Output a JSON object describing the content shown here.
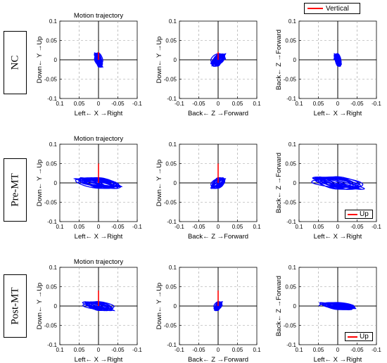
{
  "rows": [
    "NC",
    "Pre-MT",
    "Post-MT"
  ],
  "legends": [
    {
      "label": "Vertical"
    },
    {
      "label": "Up"
    },
    {
      "label": "Up"
    }
  ],
  "colors": {
    "trajectory": "#0000ff",
    "vertical": "#ff0000",
    "grid": "#999999"
  },
  "chart_data": [
    {
      "type": "line",
      "title": "Motion trajectory",
      "xlabel": "Left← X →Right",
      "ylabel": "Down← Y →Up",
      "xlim": [
        0.1,
        -0.1
      ],
      "ylim": [
        -0.1,
        0.1
      ],
      "xticks": [
        "0.1",
        "0.05",
        "0",
        "-0.05",
        "-0.1"
      ],
      "yticks": [
        "0.1",
        "0.05",
        "0",
        "-0.05",
        "-0.1"
      ],
      "grid": true,
      "vertical_line": {
        "from": 0,
        "to": 0.02
      },
      "series": [
        {
          "center": [
            0.0,
            0.0
          ],
          "rx": 0.008,
          "ry": 0.016,
          "loops": 12
        }
      ]
    },
    {
      "type": "line",
      "title": "",
      "xlabel": "Back← Z →Forward",
      "ylabel": "Down← Y →Up",
      "xlim": [
        -0.1,
        0.1
      ],
      "ylim": [
        -0.1,
        0.1
      ],
      "xticks": [
        "-0.1",
        "-0.05",
        "0",
        "0.05",
        "0.1"
      ],
      "yticks": [
        "0.1",
        "0.05",
        "0",
        "-0.05",
        "-0.1"
      ],
      "grid": true,
      "vertical_line": {
        "from": 0,
        "to": 0.02
      },
      "series": [
        {
          "center": [
            0.0,
            0.0
          ],
          "rx": 0.014,
          "ry": 0.014,
          "loops": 12
        }
      ]
    },
    {
      "type": "line",
      "title": "",
      "xlabel": "Left← X →Right",
      "ylabel": "Back← Z →Forward",
      "xlim": [
        0.1,
        -0.1
      ],
      "ylim": [
        -0.1,
        0.1
      ],
      "xticks": [
        "0.1",
        "0.05",
        "0",
        "-0.05",
        "-0.1"
      ],
      "yticks": [
        "0.1",
        "0.05",
        "0",
        "-0.05",
        "-0.1"
      ],
      "grid": true,
      "vertical_line": null,
      "series": [
        {
          "center": [
            0.0,
            0.0
          ],
          "rx": 0.007,
          "ry": 0.014,
          "loops": 12
        }
      ]
    },
    {
      "type": "line",
      "title": "Motion trajectory",
      "xlabel": "Left← X →Right",
      "ylabel": "Down← Y →Up",
      "xlim": [
        0.1,
        -0.1
      ],
      "ylim": [
        -0.1,
        0.1
      ],
      "xticks": [
        "0.1",
        "0.05",
        "0",
        "-0.05",
        "-0.1"
      ],
      "yticks": [
        "0.1",
        "0.05",
        "0",
        "-0.05",
        "-0.1"
      ],
      "grid": true,
      "vertical_line": {
        "from": 0,
        "to": 0.05
      },
      "series": [
        {
          "center": [
            0.0,
            0.0
          ],
          "rx": 0.045,
          "ry": 0.012,
          "loops": 12
        }
      ]
    },
    {
      "type": "line",
      "title": "",
      "xlabel": "Back← Z →Forward",
      "ylabel": "Down← Y →Up",
      "xlim": [
        -0.1,
        0.1
      ],
      "ylim": [
        -0.1,
        0.1
      ],
      "xticks": [
        "-0.1",
        "-0.05",
        "0",
        "0.05",
        "0.1"
      ],
      "yticks": [
        "0.1",
        "0.05",
        "0",
        "-0.05",
        "-0.1"
      ],
      "grid": true,
      "vertical_line": {
        "from": 0,
        "to": 0.05
      },
      "series": [
        {
          "center": [
            0.0,
            0.0
          ],
          "rx": 0.014,
          "ry": 0.012,
          "loops": 12
        }
      ]
    },
    {
      "type": "line",
      "title": "",
      "xlabel": "Left← X →Right",
      "ylabel": "Back← Z →Forward",
      "xlim": [
        0.1,
        -0.1
      ],
      "ylim": [
        -0.1,
        0.1
      ],
      "xticks": [
        "0.1",
        "0.05",
        "0",
        "-0.05",
        "-0.1"
      ],
      "yticks": [
        "0.1",
        "0.05",
        "0",
        "-0.05",
        "-0.1"
      ],
      "grid": true,
      "vertical_line": null,
      "series": [
        {
          "center": [
            0.0,
            0.0
          ],
          "rx": 0.05,
          "ry": 0.014,
          "loops": 12
        }
      ]
    },
    {
      "type": "line",
      "title": "Motion trajectory",
      "xlabel": "Left← X →Right",
      "ylabel": "Down← Y →Up",
      "xlim": [
        0.1,
        -0.1
      ],
      "ylim": [
        -0.1,
        0.1
      ],
      "xticks": [
        "0.1",
        "0.05",
        "0",
        "-0.05",
        "-0.1"
      ],
      "yticks": [
        "0.1",
        "0.05",
        "0",
        "-0.05",
        "-0.1"
      ],
      "grid": true,
      "vertical_line": {
        "from": 0,
        "to": 0.04
      },
      "series": [
        {
          "center": [
            0.0,
            0.0
          ],
          "rx": 0.03,
          "ry": 0.01,
          "loops": 12
        }
      ]
    },
    {
      "type": "line",
      "title": "",
      "xlabel": "Back← Z →Forward",
      "ylabel": "Down← Y →Up",
      "xlim": [
        -0.1,
        0.1
      ],
      "ylim": [
        -0.1,
        0.1
      ],
      "xticks": [
        "-0.1",
        "-0.05",
        "0",
        "0.05",
        "0.1"
      ],
      "yticks": [
        "0.1",
        "0.05",
        "0",
        "-0.05",
        "-0.1"
      ],
      "grid": true,
      "vertical_line": {
        "from": 0,
        "to": 0.04
      },
      "series": [
        {
          "center": [
            0.0,
            0.0
          ],
          "rx": 0.008,
          "ry": 0.01,
          "loops": 12
        }
      ]
    },
    {
      "type": "line",
      "title": "",
      "xlabel": "Left← X →Right",
      "ylabel": "Back← Z →Forward",
      "xlim": [
        0.1,
        -0.1
      ],
      "ylim": [
        -0.1,
        0.1
      ],
      "xticks": [
        "0.1",
        "0.05",
        "0",
        "-0.05",
        "-0.1"
      ],
      "yticks": [
        "0.1",
        "0.05",
        "0",
        "-0.05",
        "-0.1"
      ],
      "grid": true,
      "vertical_line": null,
      "series": [
        {
          "center": [
            0.0,
            0.0
          ],
          "rx": 0.035,
          "ry": 0.008,
          "loops": 12
        }
      ]
    }
  ]
}
